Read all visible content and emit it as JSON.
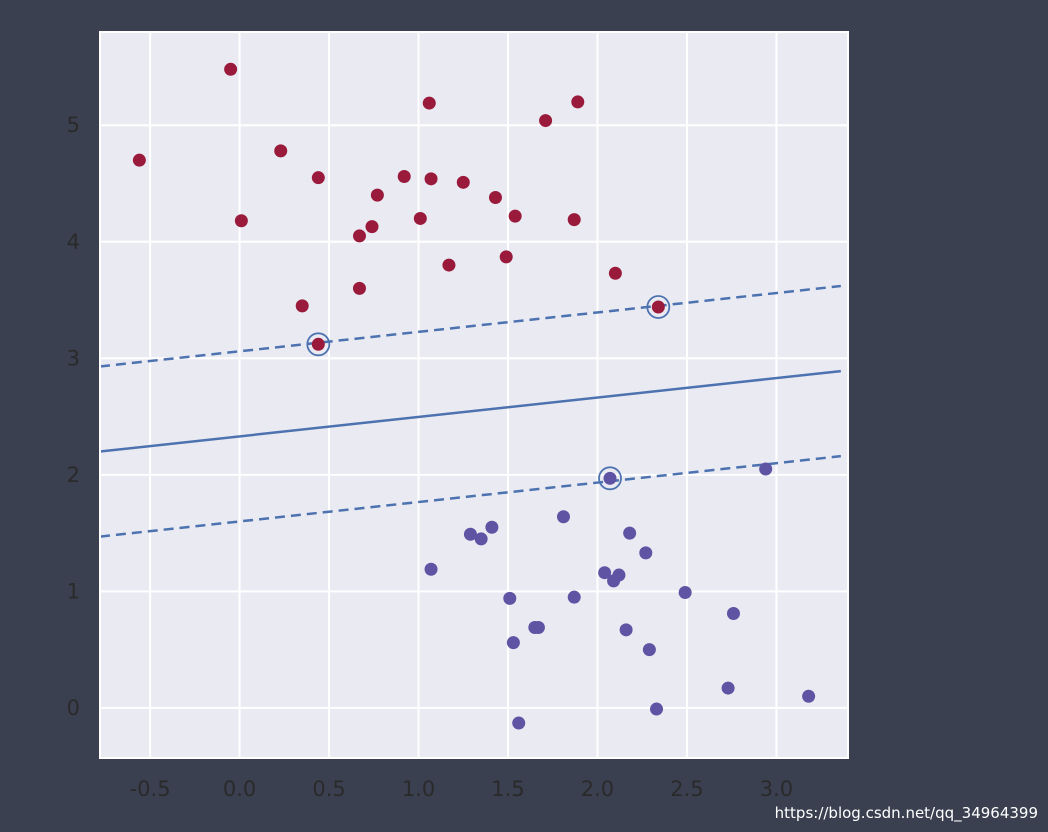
{
  "chart_data": {
    "type": "scatter",
    "title": "",
    "xlabel": "",
    "ylabel": "",
    "xlim": [
      -0.78,
      3.4
    ],
    "ylim": [
      -0.43,
      5.8
    ],
    "xticks": [
      -0.5,
      0.0,
      0.5,
      1.0,
      1.5,
      2.0,
      2.5,
      3.0
    ],
    "xtick_labels": [
      "-0.5",
      "0.0",
      "0.5",
      "1.0",
      "1.5",
      "2.0",
      "2.5",
      "3.0"
    ],
    "yticks": [
      0,
      1,
      2,
      3,
      4,
      5
    ],
    "ytick_labels": [
      "0",
      "1",
      "2",
      "3",
      "4",
      "5"
    ],
    "grid": true,
    "background_color": "#eaeaf2",
    "series": [
      {
        "color": "#9a1a3c",
        "points": [
          [
            -0.56,
            4.7
          ],
          [
            -0.05,
            5.48
          ],
          [
            0.01,
            4.18
          ],
          [
            0.23,
            4.78
          ],
          [
            0.44,
            4.55
          ],
          [
            0.35,
            3.45
          ],
          [
            0.44,
            3.12
          ],
          [
            0.67,
            4.05
          ],
          [
            0.74,
            4.13
          ],
          [
            0.77,
            4.4
          ],
          [
            0.67,
            3.6
          ],
          [
            0.92,
            4.56
          ],
          [
            1.01,
            4.2
          ],
          [
            1.06,
            5.19
          ],
          [
            1.07,
            4.54
          ],
          [
            1.17,
            3.8
          ],
          [
            1.25,
            4.51
          ],
          [
            1.43,
            4.38
          ],
          [
            1.49,
            3.87
          ],
          [
            1.54,
            4.22
          ],
          [
            1.71,
            5.04
          ],
          [
            1.87,
            4.19
          ],
          [
            1.89,
            5.2
          ],
          [
            2.1,
            3.73
          ],
          [
            2.34,
            3.44
          ]
        ]
      },
      {
        "color": "#5e54a3",
        "points": [
          [
            1.07,
            1.19
          ],
          [
            1.29,
            1.49
          ],
          [
            1.35,
            1.45
          ],
          [
            1.41,
            1.55
          ],
          [
            1.51,
            0.94
          ],
          [
            1.53,
            0.56
          ],
          [
            1.56,
            -0.13
          ],
          [
            1.65,
            0.69
          ],
          [
            1.67,
            0.69
          ],
          [
            1.81,
            1.64
          ],
          [
            1.87,
            0.95
          ],
          [
            2.04,
            1.16
          ],
          [
            2.07,
            1.97
          ],
          [
            2.09,
            1.09
          ],
          [
            2.12,
            1.14
          ],
          [
            2.16,
            0.67
          ],
          [
            2.18,
            1.5
          ],
          [
            2.27,
            1.33
          ],
          [
            2.29,
            0.5
          ],
          [
            2.33,
            -0.01
          ],
          [
            2.49,
            0.99
          ],
          [
            2.73,
            0.17
          ],
          [
            2.76,
            0.81
          ],
          [
            2.94,
            2.05
          ],
          [
            3.18,
            0.1
          ]
        ]
      }
    ],
    "decision_boundary": {
      "color": "#4c72b0",
      "solid": [
        [
          -0.78,
          2.2
        ],
        [
          3.36,
          2.89
        ]
      ],
      "margin_upper": [
        [
          -0.78,
          2.93
        ],
        [
          3.36,
          3.62
        ]
      ],
      "margin_lower": [
        [
          -0.78,
          1.47
        ],
        [
          3.36,
          2.16
        ]
      ]
    },
    "support_vectors": [
      [
        0.44,
        3.12
      ],
      [
        2.34,
        3.44
      ],
      [
        2.07,
        1.97
      ]
    ]
  },
  "watermark": "https://blog.csdn.net/qq_34964399"
}
